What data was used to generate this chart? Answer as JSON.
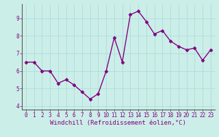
{
  "x": [
    0,
    1,
    2,
    3,
    4,
    5,
    6,
    7,
    8,
    9,
    10,
    11,
    12,
    13,
    14,
    15,
    16,
    17,
    18,
    19,
    20,
    21,
    22,
    23
  ],
  "y": [
    6.5,
    6.5,
    6.0,
    6.0,
    5.3,
    5.5,
    5.2,
    4.8,
    4.4,
    4.7,
    6.0,
    7.9,
    6.5,
    9.2,
    9.4,
    8.8,
    8.1,
    8.3,
    7.7,
    7.4,
    7.2,
    7.3,
    6.6,
    7.2
  ],
  "line_color": "#800080",
  "marker": "D",
  "marker_size": 2.5,
  "bg_color": "#cceee8",
  "grid_color": "#aadddd",
  "xlabel": "Windchill (Refroidissement éolien,°C)",
  "xlim": [
    -0.5,
    23.5
  ],
  "ylim": [
    3.8,
    9.8
  ],
  "yticks": [
    4,
    5,
    6,
    7,
    8,
    9
  ],
  "xticks": [
    0,
    1,
    2,
    3,
    4,
    5,
    6,
    7,
    8,
    9,
    10,
    11,
    12,
    13,
    14,
    15,
    16,
    17,
    18,
    19,
    20,
    21,
    22,
    23
  ],
  "tick_color": "#800080",
  "label_color": "#800080",
  "tick_fontsize": 5.5,
  "xlabel_fontsize": 6.5,
  "linewidth": 1.0,
  "spine_color": "#800080"
}
